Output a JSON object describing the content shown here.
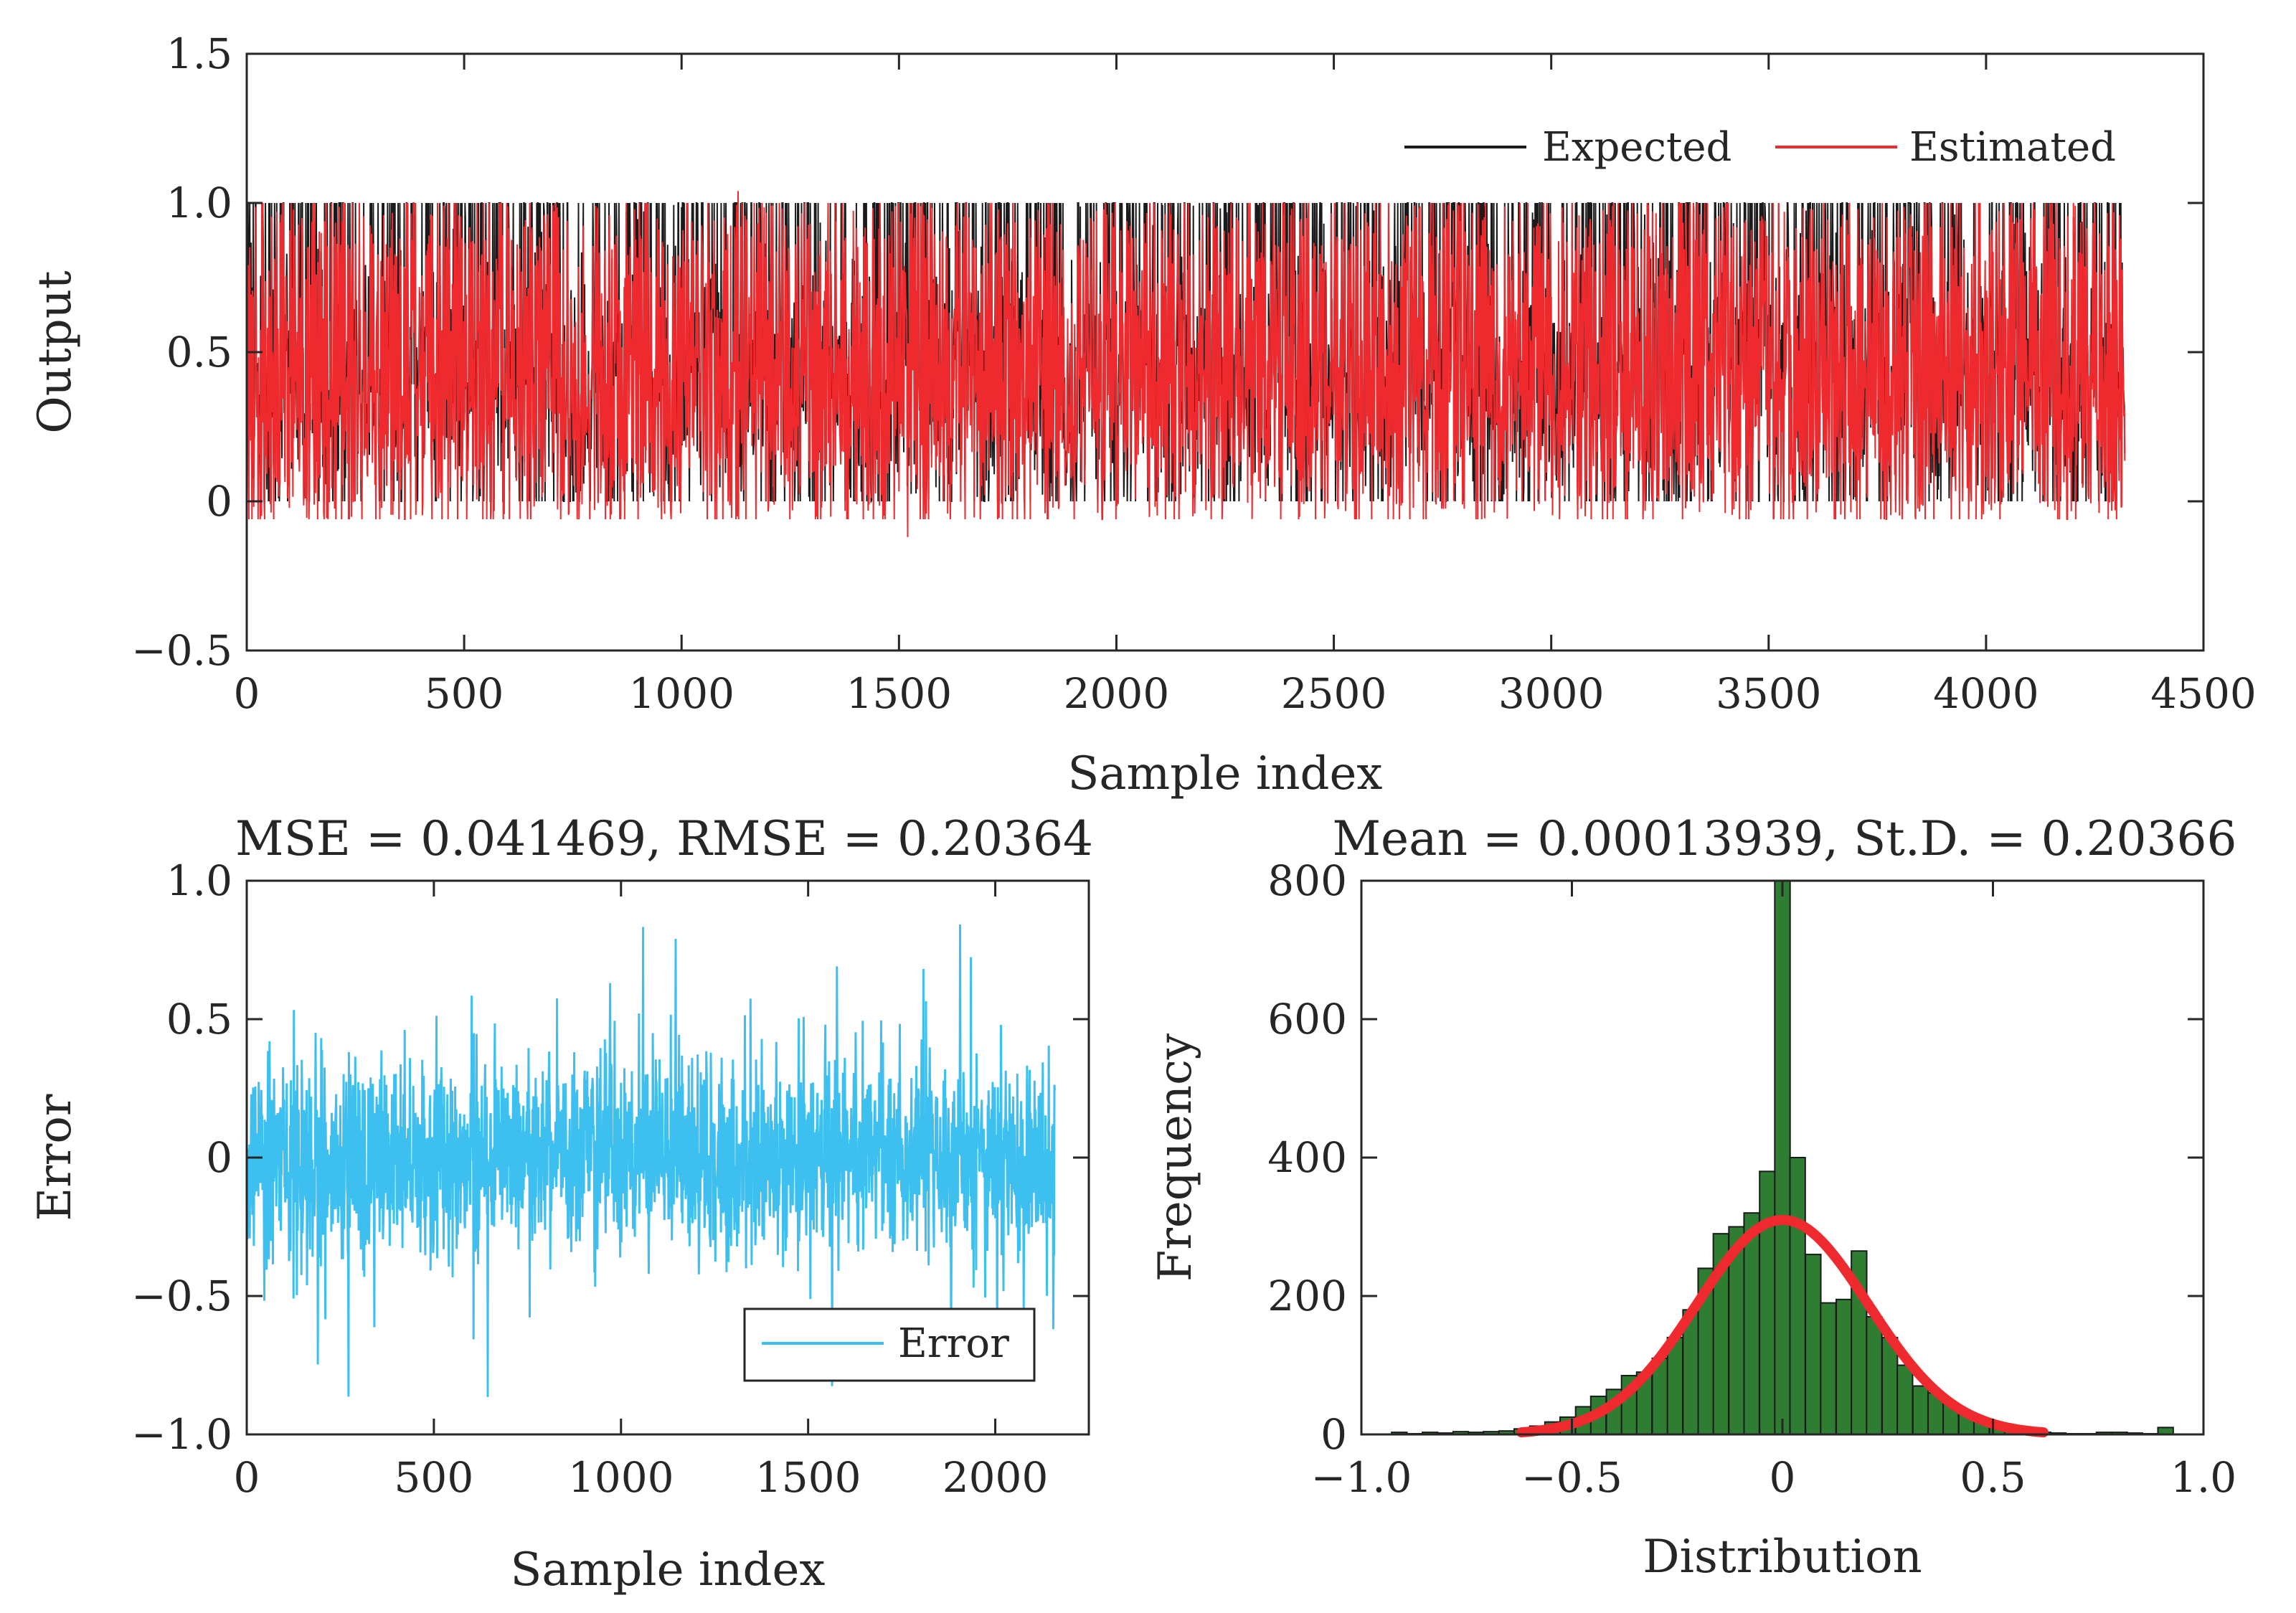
{
  "chart_data": [
    {
      "type": "line",
      "xlabel": "Sample index",
      "ylabel": "Output",
      "xlim": [
        0,
        4500
      ],
      "ylim": [
        -0.5,
        1.5
      ],
      "xticks": [
        "0",
        "500",
        "1000",
        "1500",
        "2000",
        "2500",
        "3000",
        "3500",
        "4000",
        "4500"
      ],
      "yticks": [
        "−0.5",
        "0",
        "0.5",
        "1.0",
        "1.5"
      ],
      "n_samples": 4320,
      "legend_position": "top-right",
      "grid": false,
      "series": [
        {
          "name": "Expected",
          "color": "#1a1a1a",
          "range": [
            0,
            1
          ],
          "description_values": {
            "min": 0,
            "max": 1
          }
        },
        {
          "name": "Estimated",
          "color": "#ee2a2f",
          "range": [
            -0.12,
            1.04
          ],
          "description_values": {
            "min": -0.12,
            "max": 1.04
          }
        }
      ]
    },
    {
      "type": "line",
      "title": "MSE = 0.041469, RMSE = 0.20364",
      "xlabel": "Sample index",
      "ylabel": "Error",
      "xlim": [
        0,
        2250
      ],
      "ylim": [
        -1.0,
        1.0
      ],
      "xticks": [
        "0",
        "500",
        "1000",
        "1500",
        "2000"
      ],
      "yticks": [
        "−1.0",
        "−0.5",
        "0",
        "0.5",
        "1.0"
      ],
      "n_samples": 2160,
      "legend_position": "bottom-right",
      "grid": false,
      "series": [
        {
          "name": "Error",
          "color": "#3dbfef",
          "range": [
            -0.9,
            0.92
          ]
        }
      ]
    },
    {
      "type": "bar",
      "title": "Mean = 0.00013939, St.D. = 0.20366",
      "xlabel": "Distribution",
      "ylabel": "Frequency",
      "xlim": [
        -1.0,
        1.0
      ],
      "ylim": [
        0,
        800
      ],
      "xticks": [
        "−1.0",
        "−0.5",
        "0",
        "0.5",
        "1.0"
      ],
      "yticks": [
        "0",
        "200",
        "400",
        "600",
        "800"
      ],
      "grid": false,
      "histogram": {
        "bin_width": 0.0364,
        "bin_centers": [
          -0.91,
          -0.874,
          -0.837,
          -0.801,
          -0.764,
          -0.728,
          -0.692,
          -0.655,
          -0.619,
          -0.582,
          -0.546,
          -0.51,
          -0.473,
          -0.437,
          -0.4,
          -0.364,
          -0.328,
          -0.291,
          -0.255,
          -0.218,
          -0.182,
          -0.146,
          -0.109,
          -0.073,
          -0.036,
          0.0,
          0.036,
          0.073,
          0.109,
          0.146,
          0.182,
          0.218,
          0.255,
          0.291,
          0.328,
          0.364,
          0.4,
          0.437,
          0.473,
          0.51,
          0.546,
          0.582,
          0.619,
          0.655,
          0.692,
          0.728,
          0.764,
          0.801,
          0.837,
          0.874,
          0.91
        ],
        "counts": [
          3,
          1,
          3,
          2,
          4,
          3,
          4,
          5,
          8,
          12,
          18,
          25,
          40,
          55,
          65,
          85,
          90,
          110,
          140,
          180,
          240,
          290,
          300,
          320,
          380,
          800,
          400,
          260,
          190,
          195,
          265,
          170,
          140,
          100,
          70,
          60,
          45,
          30,
          20,
          15,
          10,
          5,
          3,
          2,
          1,
          1,
          3,
          3,
          2,
          1,
          10
        ],
        "color": "#2e7d32"
      },
      "fit_curve": {
        "type": "normal",
        "mean": 0.00013939,
        "std": 0.20366,
        "peak": 310,
        "x_range": [
          -0.62,
          0.62
        ],
        "color": "#ee2a2f"
      }
    }
  ]
}
